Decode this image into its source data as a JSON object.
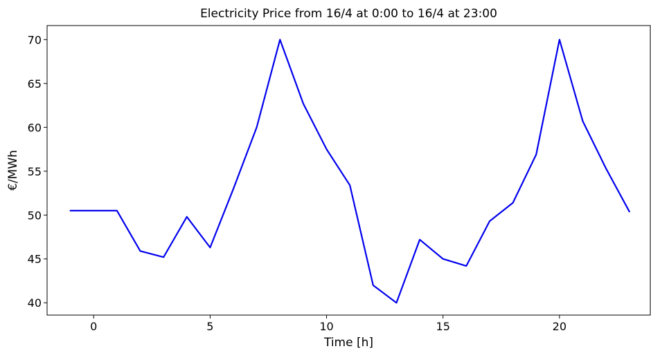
{
  "chart_data": {
    "type": "line",
    "title": "Electricity Price from 16/4 at 0:00 to 16/4 at 23:00",
    "xlabel": "Time [h]",
    "ylabel": "€/MWh",
    "xlim": [
      -2.0,
      23.9
    ],
    "ylim": [
      38.6,
      71.6
    ],
    "xticks": [
      0,
      5,
      10,
      15,
      20
    ],
    "yticks": [
      40,
      45,
      50,
      55,
      60,
      65,
      70
    ],
    "grid": false,
    "series": [
      {
        "color": "#0000ee",
        "x": [
          -1,
          0,
          1,
          2,
          3,
          4,
          5,
          6,
          7,
          8,
          9,
          10,
          11,
          12,
          13,
          14,
          15,
          16,
          17,
          18,
          19,
          20,
          21,
          22,
          23
        ],
        "y": [
          50.5,
          50.5,
          50.5,
          45.9,
          45.2,
          49.8,
          46.3,
          53.0,
          60.0,
          70.0,
          62.7,
          57.5,
          53.4,
          42.0,
          40.0,
          47.2,
          45.0,
          44.2,
          49.3,
          51.4,
          56.9,
          70.0,
          60.7,
          55.3,
          50.4
        ]
      }
    ]
  }
}
